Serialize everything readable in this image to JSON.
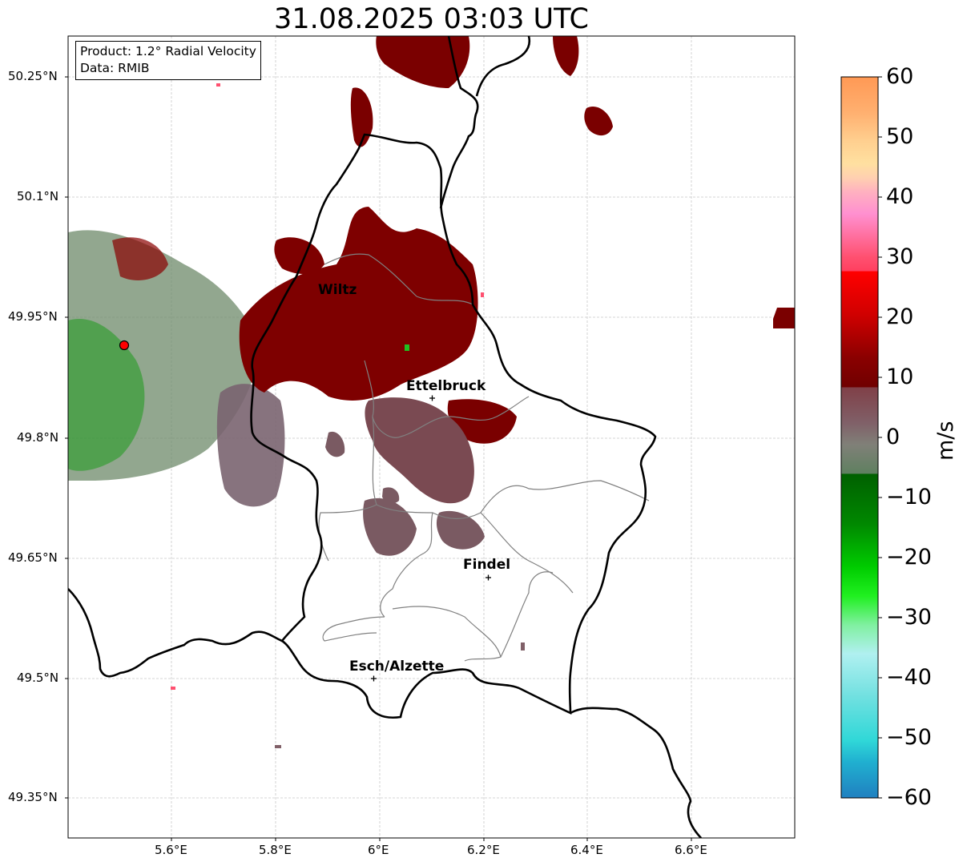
{
  "title": "31.08.2025 03:03 UTC",
  "info": {
    "product": "Product: 1.2° Radial Velocity",
    "data_source": "Data: RMIB"
  },
  "axes": {
    "lat_labels": [
      "50.25°N",
      "50.1°N",
      "49.95°N",
      "49.8°N",
      "49.65°N",
      "49.5°N",
      "49.35°N"
    ],
    "lon_labels": [
      "5.6°E",
      "5.8°E",
      "6°E",
      "6.2°E",
      "6.4°E",
      "6.6°E"
    ]
  },
  "cities": [
    {
      "name": "Wiltz"
    },
    {
      "name": "Ettelbruck"
    },
    {
      "name": "Findel"
    },
    {
      "name": "Esch/Alzette"
    }
  ],
  "colorbar": {
    "unit": "m/s",
    "ticks": [
      "60",
      "50",
      "40",
      "30",
      "20",
      "10",
      "0",
      "−10",
      "−20",
      "−30",
      "−40",
      "−50",
      "−60"
    ],
    "min": -60,
    "max": 60
  },
  "colors": {
    "grid": "#c8c8c8",
    "border": "#000000",
    "canton": "#808080",
    "radar_site": "#ff0000"
  }
}
